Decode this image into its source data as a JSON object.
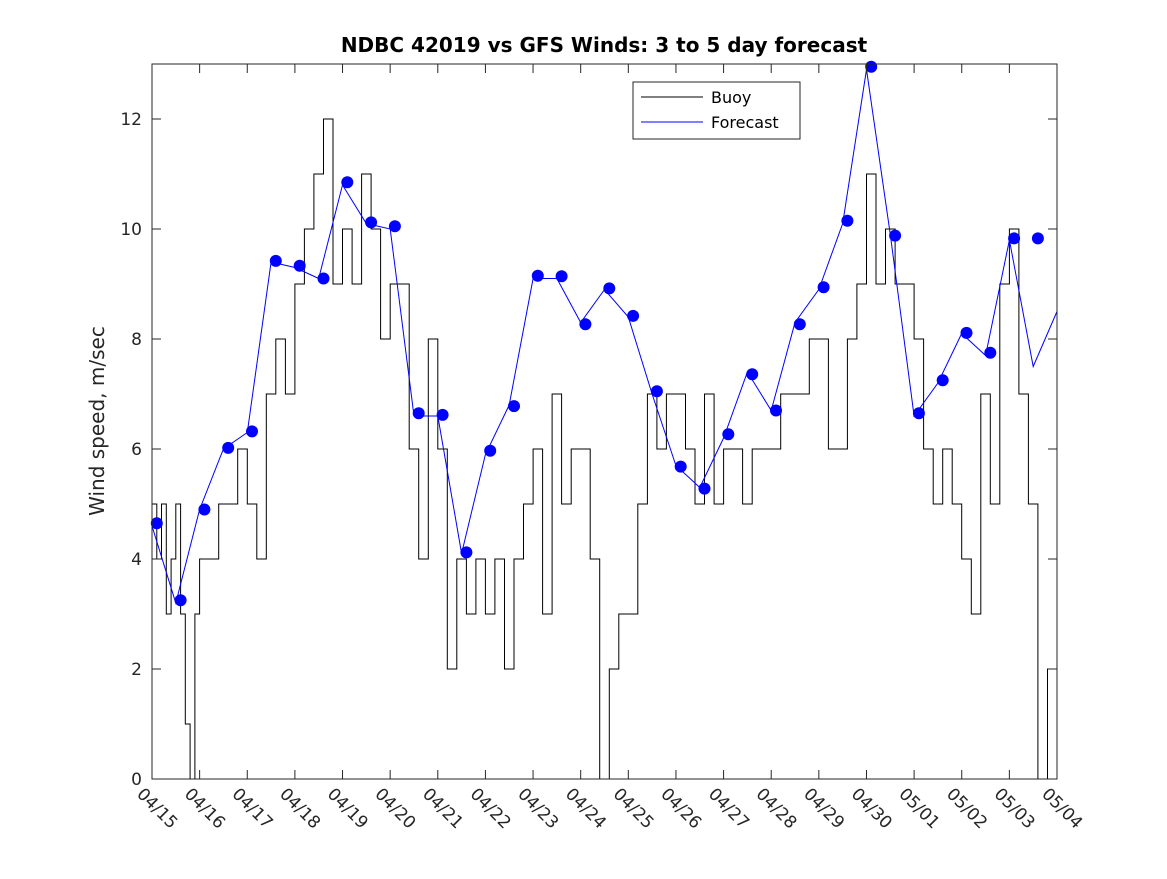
{
  "chart_data": {
    "type": "line",
    "title": "NDBC 42019 vs GFS Winds: 3 to 5 day forecast",
    "xlabel": "",
    "ylabel": "Wind speed, m/sec",
    "ylim": [
      0,
      13
    ],
    "xlim": [
      "04/15",
      "05/04"
    ],
    "x_tick_labels": [
      "04/15",
      "04/16",
      "04/17",
      "04/18",
      "04/19",
      "04/20",
      "04/21",
      "04/22",
      "04/23",
      "04/24",
      "04/25",
      "04/26",
      "04/27",
      "04/28",
      "04/29",
      "04/30",
      "05/01",
      "05/02",
      "05/03",
      "05/04"
    ],
    "y_tick_labels": [
      "0",
      "2",
      "4",
      "6",
      "8",
      "10",
      "12"
    ],
    "y_ticks": [
      0,
      2,
      4,
      6,
      8,
      10,
      12
    ],
    "grid": false,
    "legend_position": "top-right",
    "series": [
      {
        "name": "Buoy",
        "color": "#000000",
        "x": [
          0,
          0.1,
          0.2,
          0.3,
          0.4,
          0.5,
          0.6,
          0.7,
          0.8,
          0.9,
          1.0,
          1.2,
          1.4,
          1.6,
          1.8,
          2.0,
          2.2,
          2.4,
          2.6,
          2.8,
          3.0,
          3.2,
          3.4,
          3.6,
          3.8,
          4.0,
          4.2,
          4.4,
          4.6,
          4.8,
          5.0,
          5.2,
          5.4,
          5.6,
          5.8,
          6.0,
          6.2,
          6.4,
          6.6,
          6.8,
          7.0,
          7.2,
          7.4,
          7.6,
          7.8,
          8.0,
          8.2,
          8.4,
          8.6,
          8.8,
          9.0,
          9.2,
          9.4,
          9.6,
          9.8,
          10.0,
          10.2,
          10.4,
          10.6,
          10.8,
          11.0,
          11.2,
          11.4,
          11.6,
          11.8,
          12.0,
          12.2,
          12.4,
          12.6,
          12.8,
          13.0,
          13.2,
          13.4,
          13.6,
          13.8,
          14.0,
          14.2,
          14.4,
          14.6,
          14.8,
          15.0,
          15.2,
          15.4,
          15.6,
          15.8,
          16.0,
          16.2,
          16.4,
          16.6,
          16.8,
          17.0,
          17.2,
          17.4,
          17.6,
          17.8,
          18.0,
          18.2,
          18.4,
          18.6,
          18.8,
          19.0
        ],
        "values": [
          5,
          4,
          5,
          3,
          4,
          5,
          3,
          1,
          0,
          3,
          4,
          4,
          5,
          5,
          6,
          5,
          4,
          7,
          8,
          7,
          9,
          10,
          11,
          12,
          9,
          10,
          9,
          11,
          10,
          8,
          9,
          9,
          6,
          4,
          8,
          6,
          2,
          4,
          3,
          4,
          3,
          4,
          2,
          4,
          5,
          6,
          3,
          7,
          5,
          6,
          6,
          4,
          0,
          2,
          3,
          3,
          5,
          7,
          6,
          7,
          7,
          6,
          5,
          7,
          5,
          6,
          6,
          5,
          6,
          6,
          6,
          7,
          7,
          7,
          8,
          8,
          6,
          6,
          8,
          9,
          11,
          9,
          10,
          9,
          9,
          8,
          6,
          5,
          6,
          5,
          4,
          3,
          7,
          5,
          9,
          10,
          7,
          5,
          0,
          2,
          2
        ]
      },
      {
        "name": "Forecast",
        "color": "#0000ff",
        "x": [
          0,
          0.5,
          1.0,
          1.5,
          2.0,
          2.5,
          3.0,
          3.5,
          4.0,
          4.5,
          5.0,
          5.5,
          6.0,
          6.5,
          7.0,
          7.5,
          8.0,
          8.5,
          9.0,
          9.5,
          10.0,
          10.5,
          11.0,
          11.5,
          12.0,
          12.5,
          13.0,
          13.5,
          14.0,
          14.5,
          15.0,
          15.5,
          16.0,
          16.5,
          17.0,
          17.5,
          18.0,
          18.5,
          19.0
        ],
        "values": [
          4.6,
          3.2,
          4.9,
          6.0,
          6.3,
          9.4,
          9.3,
          9.1,
          10.8,
          10.1,
          10.0,
          6.6,
          6.6,
          4.1,
          5.9,
          6.8,
          9.1,
          9.1,
          8.3,
          8.9,
          8.4,
          7.0,
          5.7,
          5.3,
          6.2,
          7.4,
          6.7,
          8.3,
          8.9,
          10.1,
          12.9,
          9.9,
          6.6,
          7.2,
          8.1,
          7.7,
          9.8,
          7.5,
          8.5
        ]
      }
    ],
    "forecast_markers": {
      "x": [
        0.1,
        0.6,
        1.1,
        1.6,
        2.1,
        2.6,
        3.1,
        3.6,
        4.1,
        4.6,
        5.1,
        5.6,
        6.1,
        6.6,
        7.1,
        7.6,
        8.1,
        8.6,
        9.1,
        9.6,
        10.1,
        10.6,
        11.1,
        11.6,
        12.1,
        12.6,
        13.1,
        13.6,
        14.1,
        14.6,
        15.1,
        15.6,
        16.1,
        16.6,
        17.1,
        17.6,
        18.1,
        18.6
      ],
      "values": [
        4.65,
        3.25,
        4.9,
        6.02,
        6.32,
        9.42,
        9.33,
        9.1,
        10.85,
        10.12,
        10.05,
        6.65,
        6.62,
        4.12,
        5.97,
        6.78,
        9.15,
        9.14,
        8.27,
        8.92,
        8.42,
        7.05,
        5.68,
        5.28,
        6.27,
        7.36,
        6.7,
        8.27,
        8.94,
        10.15,
        12.95,
        9.88,
        6.65,
        7.25,
        8.11,
        7.75,
        9.83,
        9.83
      ]
    }
  }
}
